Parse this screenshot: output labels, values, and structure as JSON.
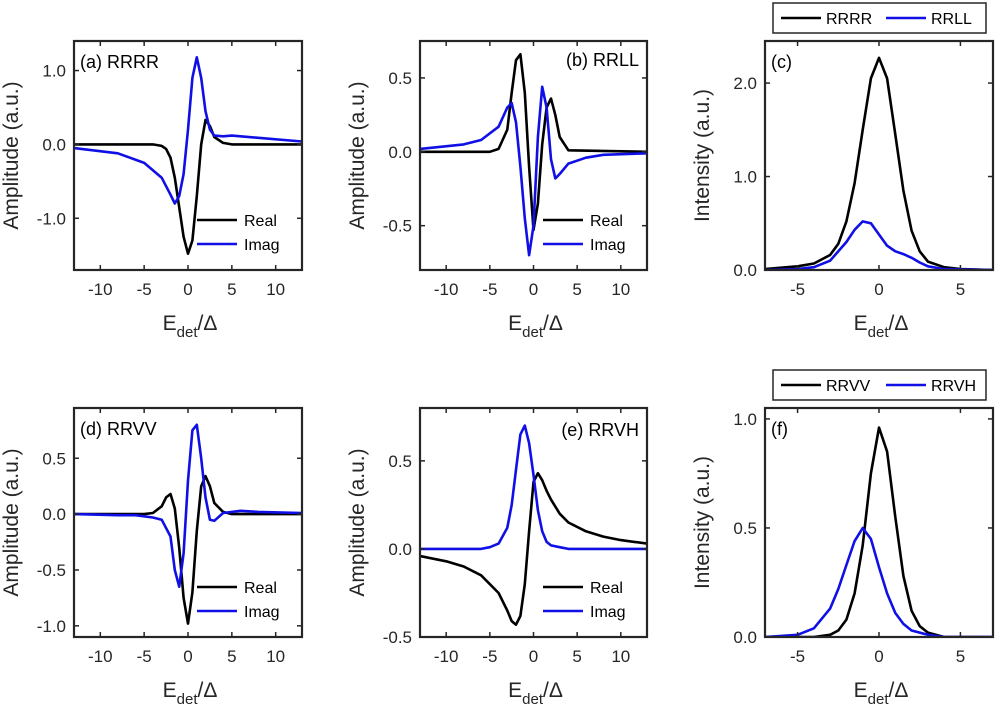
{
  "figure": {
    "colors": {
      "black": "#000000",
      "blue": "#1010e6",
      "axis": "#262626"
    },
    "common_xlabel": {
      "main": "E",
      "sub": "det",
      "tail": "/Δ"
    }
  },
  "chart_data": [
    {
      "id": "a",
      "type": "line",
      "label": "(a) RRRR",
      "xlabel": "E_det/Δ",
      "ylabel": "Amplitude (a.u.)",
      "xlim": [
        -13,
        13
      ],
      "ylim": [
        -1.7,
        1.4
      ],
      "xticks": [
        -10,
        -5,
        0,
        5,
        10
      ],
      "xtick_labels": [
        "-10",
        "-5",
        "0",
        "5",
        "10"
      ],
      "yticks": [
        -1,
        0,
        1
      ],
      "ytick_labels": [
        "-1.0",
        "0.0",
        "1.0"
      ],
      "legend": {
        "entries": [
          "Real",
          "Imag"
        ],
        "position": "bottom-right"
      },
      "series": [
        {
          "name": "Real",
          "color": "black",
          "x": [
            -13,
            -4,
            -3,
            -2.5,
            -2,
            -1.5,
            -1,
            -0.5,
            0,
            0.5,
            1,
            1.5,
            2,
            2.5,
            3,
            4,
            5,
            13
          ],
          "y": [
            0,
            0,
            -0.02,
            -0.06,
            -0.18,
            -0.45,
            -0.85,
            -1.25,
            -1.48,
            -1.3,
            -0.7,
            0.0,
            0.33,
            0.25,
            0.1,
            0.02,
            0,
            0
          ]
        },
        {
          "name": "Imag",
          "color": "blue",
          "x": [
            -13,
            -8,
            -5,
            -3,
            -2,
            -1.5,
            -1,
            -0.5,
            0,
            0.5,
            1,
            1.5,
            2,
            2.5,
            3,
            4,
            5,
            8,
            13
          ],
          "y": [
            -0.05,
            -0.12,
            -0.25,
            -0.45,
            -0.68,
            -0.8,
            -0.7,
            -0.4,
            0.2,
            0.9,
            1.18,
            0.9,
            0.45,
            0.2,
            0.12,
            0.11,
            0.12,
            0.09,
            0.04
          ]
        }
      ]
    },
    {
      "id": "b",
      "type": "line",
      "label": "(b) RRLL",
      "xlabel": "E_det/Δ",
      "ylabel": "Amplitude (a.u.)",
      "xlim": [
        -13,
        13
      ],
      "ylim": [
        -0.8,
        0.75
      ],
      "xticks": [
        -10,
        -5,
        0,
        5,
        10
      ],
      "xtick_labels": [
        "-10",
        "-5",
        "0",
        "5",
        "10"
      ],
      "yticks": [
        -0.5,
        0,
        0.5
      ],
      "ytick_labels": [
        "-0.5",
        "0.0",
        "0.5"
      ],
      "legend": {
        "entries": [
          "Real",
          "Imag"
        ],
        "position": "bottom-right"
      },
      "series": [
        {
          "name": "Real",
          "color": "black",
          "x": [
            -13,
            -5,
            -4,
            -3,
            -2.5,
            -2,
            -1.5,
            -1,
            -0.5,
            0,
            0.5,
            1,
            1.5,
            2,
            2.5,
            3,
            4,
            13
          ],
          "y": [
            0,
            0,
            0.02,
            0.15,
            0.4,
            0.62,
            0.66,
            0.4,
            -0.1,
            -0.53,
            -0.35,
            0.05,
            0.3,
            0.36,
            0.25,
            0.1,
            0.01,
            0
          ]
        },
        {
          "name": "Imag",
          "color": "blue",
          "x": [
            -13,
            -8,
            -6,
            -4,
            -3,
            -2.5,
            -2,
            -1.5,
            -1,
            -0.5,
            0,
            0.5,
            1,
            1.5,
            2,
            2.5,
            3,
            4,
            6,
            8,
            13
          ],
          "y": [
            0.02,
            0.05,
            0.08,
            0.17,
            0.3,
            0.33,
            0.2,
            -0.1,
            -0.45,
            -0.7,
            -0.5,
            0.1,
            0.44,
            0.3,
            -0.05,
            -0.18,
            -0.15,
            -0.08,
            -0.04,
            -0.02,
            -0.01
          ]
        }
      ]
    },
    {
      "id": "c",
      "type": "line",
      "label": "(c)",
      "xlabel": "E_det/Δ",
      "ylabel": "Intensity (a.u.)",
      "xlim": [
        -7,
        7
      ],
      "ylim": [
        0,
        2.45
      ],
      "xticks": [
        -5,
        0,
        5
      ],
      "xtick_labels": [
        "-5",
        "0",
        "5"
      ],
      "yticks": [
        0,
        1,
        2
      ],
      "ytick_labels": [
        "0.0",
        "1.0",
        "2.0"
      ],
      "legend": {
        "entries": [
          "RRRR",
          "RRLL"
        ],
        "position": "top-outside"
      },
      "series": [
        {
          "name": "RRRR",
          "color": "black",
          "x": [
            -7,
            -5,
            -4,
            -3,
            -2.5,
            -2,
            -1.5,
            -1,
            -0.5,
            0,
            0.5,
            1,
            1.5,
            2,
            2.5,
            3,
            4,
            5,
            7
          ],
          "y": [
            0.01,
            0.04,
            0.07,
            0.16,
            0.28,
            0.52,
            0.93,
            1.5,
            2.05,
            2.27,
            2.05,
            1.45,
            0.85,
            0.42,
            0.2,
            0.09,
            0.03,
            0.01,
            0
          ]
        },
        {
          "name": "RRLL",
          "color": "blue",
          "x": [
            -7,
            -5,
            -4,
            -3,
            -2,
            -1.5,
            -1,
            -0.5,
            0,
            0.5,
            1,
            1.5,
            2,
            2.5,
            3,
            4,
            7
          ],
          "y": [
            0,
            0.01,
            0.03,
            0.1,
            0.3,
            0.43,
            0.52,
            0.5,
            0.38,
            0.26,
            0.2,
            0.17,
            0.13,
            0.08,
            0.04,
            0.01,
            0
          ]
        }
      ]
    },
    {
      "id": "d",
      "type": "line",
      "label": "(d) RRVV",
      "xlabel": "E_det/Δ",
      "ylabel": "Amplitude (a.u.)",
      "xlim": [
        -13,
        13
      ],
      "ylim": [
        -1.1,
        0.95
      ],
      "xticks": [
        -10,
        -5,
        0,
        5,
        10
      ],
      "xtick_labels": [
        "-10",
        "-5",
        "0",
        "5",
        "10"
      ],
      "yticks": [
        -1,
        -0.5,
        0,
        0.5
      ],
      "ytick_labels": [
        "-1.0",
        "-0.5",
        "0.0",
        "0.5"
      ],
      "legend": {
        "entries": [
          "Real",
          "Imag"
        ],
        "position": "bottom-right"
      },
      "series": [
        {
          "name": "Real",
          "color": "black",
          "x": [
            -13,
            -5,
            -4,
            -3,
            -2.5,
            -2,
            -1.5,
            -1,
            -0.5,
            0,
            0.5,
            1,
            1.5,
            2,
            2.5,
            3,
            4,
            5,
            13
          ],
          "y": [
            0,
            0,
            0.01,
            0.07,
            0.15,
            0.18,
            0.05,
            -0.3,
            -0.75,
            -0.98,
            -0.7,
            -0.15,
            0.25,
            0.34,
            0.25,
            0.1,
            0.02,
            0,
            0
          ]
        },
        {
          "name": "Imag",
          "color": "blue",
          "x": [
            -13,
            -8,
            -6,
            -4,
            -3,
            -2,
            -1.5,
            -1,
            -0.5,
            0,
            0.5,
            1,
            1.5,
            2,
            2.5,
            3,
            4,
            6,
            8,
            13
          ],
          "y": [
            0,
            -0.01,
            -0.01,
            -0.03,
            -0.05,
            -0.2,
            -0.5,
            -0.65,
            -0.35,
            0.3,
            0.75,
            0.8,
            0.5,
            0.15,
            -0.05,
            -0.06,
            0.01,
            0.03,
            0.02,
            0.01
          ]
        }
      ]
    },
    {
      "id": "e",
      "type": "line",
      "label": "(e) RRVH",
      "xlabel": "E_det/Δ",
      "ylabel": "Amplitude (a.u.)",
      "xlim": [
        -13,
        13
      ],
      "ylim": [
        -0.5,
        0.8
      ],
      "xticks": [
        -10,
        -5,
        0,
        5,
        10
      ],
      "xtick_labels": [
        "-10",
        "-5",
        "0",
        "5",
        "10"
      ],
      "yticks": [
        -0.5,
        0,
        0.5
      ],
      "ytick_labels": [
        "-0.5",
        "0.0",
        "0.5"
      ],
      "legend": {
        "entries": [
          "Real",
          "Imag"
        ],
        "position": "bottom-right"
      },
      "series": [
        {
          "name": "Real",
          "color": "black",
          "x": [
            -13,
            -10,
            -8,
            -6,
            -4,
            -3,
            -2.5,
            -2,
            -1.5,
            -1,
            -0.5,
            0,
            0.5,
            1,
            1.5,
            2,
            3,
            4,
            6,
            8,
            10,
            13
          ],
          "y": [
            -0.04,
            -0.07,
            -0.1,
            -0.15,
            -0.25,
            -0.35,
            -0.41,
            -0.43,
            -0.38,
            -0.2,
            0.1,
            0.38,
            0.43,
            0.39,
            0.33,
            0.28,
            0.2,
            0.15,
            0.1,
            0.07,
            0.05,
            0.03
          ]
        },
        {
          "name": "Imag",
          "color": "blue",
          "x": [
            -13,
            -6,
            -5,
            -4,
            -3,
            -2.5,
            -2,
            -1.5,
            -1,
            -0.5,
            0,
            0.5,
            1,
            1.5,
            2,
            3,
            4,
            13
          ],
          "y": [
            0,
            0,
            0.01,
            0.03,
            0.12,
            0.25,
            0.45,
            0.65,
            0.7,
            0.6,
            0.42,
            0.22,
            0.1,
            0.04,
            0.02,
            0.01,
            0,
            0
          ]
        }
      ]
    },
    {
      "id": "f",
      "type": "line",
      "label": "(f)",
      "xlabel": "E_det/Δ",
      "ylabel": "Intensity (a.u.)",
      "xlim": [
        -7,
        7
      ],
      "ylim": [
        0,
        1.05
      ],
      "xticks": [
        -5,
        0,
        5
      ],
      "xtick_labels": [
        "-5",
        "0",
        "5"
      ],
      "yticks": [
        0,
        0.5,
        1
      ],
      "ytick_labels": [
        "0.0",
        "0.5",
        "1.0"
      ],
      "legend": {
        "entries": [
          "RRVV",
          "RRVH"
        ],
        "position": "top-outside"
      },
      "series": [
        {
          "name": "RRVV",
          "color": "black",
          "x": [
            -7,
            -4,
            -3,
            -2.5,
            -2,
            -1.5,
            -1,
            -0.5,
            0,
            0.5,
            1,
            1.5,
            2,
            2.5,
            3,
            4,
            7
          ],
          "y": [
            0,
            0,
            0.01,
            0.03,
            0.08,
            0.2,
            0.42,
            0.75,
            0.96,
            0.85,
            0.55,
            0.28,
            0.12,
            0.05,
            0.02,
            0,
            0
          ]
        },
        {
          "name": "RRVH",
          "color": "blue",
          "x": [
            -7,
            -5,
            -4,
            -3,
            -2.5,
            -2,
            -1.5,
            -1,
            -0.5,
            0,
            0.5,
            1,
            1.5,
            2,
            3,
            4,
            7
          ],
          "y": [
            0,
            0.01,
            0.04,
            0.13,
            0.22,
            0.33,
            0.44,
            0.5,
            0.45,
            0.32,
            0.2,
            0.11,
            0.06,
            0.03,
            0.01,
            0,
            0
          ]
        }
      ]
    }
  ]
}
